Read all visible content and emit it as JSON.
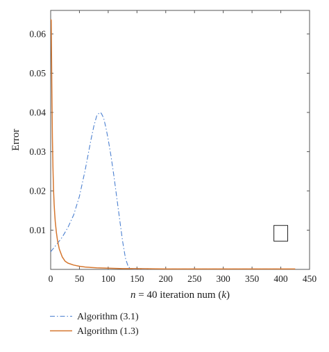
{
  "chart_data": {
    "type": "line",
    "xlabel_parts": [
      "n",
      " = 40 iteration num (",
      "k",
      ")"
    ],
    "ylabel": "Error",
    "xlim": [
      0,
      450
    ],
    "ylim": [
      0,
      0.066
    ],
    "x_ticks": [
      0,
      50,
      100,
      150,
      200,
      250,
      300,
      350,
      400,
      450
    ],
    "x_tick_labels": [
      "0",
      "50",
      "100",
      "150",
      "200",
      "250",
      "300",
      "350",
      "400",
      "450"
    ],
    "y_ticks": [
      0.01,
      0.02,
      0.03,
      0.04,
      0.05,
      0.06
    ],
    "y_tick_labels": [
      "0.01",
      "0.02",
      "0.03",
      "0.04",
      "0.05",
      "0.06"
    ],
    "grid": false,
    "legend_position": "below",
    "series": [
      {
        "name": "Algorithm (3.1)",
        "color": "#4a7fd0",
        "style": "dash-dot",
        "x": [
          0,
          10,
          20,
          30,
          40,
          50,
          60,
          70,
          75,
          80,
          85,
          88,
          92,
          96,
          100,
          105,
          110,
          115,
          120,
          125,
          130,
          135,
          140,
          145,
          150,
          200,
          300,
          400
        ],
        "y": [
          0.0045,
          0.0063,
          0.0082,
          0.0107,
          0.0139,
          0.0186,
          0.0253,
          0.033,
          0.0365,
          0.0391,
          0.04,
          0.0398,
          0.0386,
          0.0361,
          0.0331,
          0.0288,
          0.0237,
          0.0182,
          0.0126,
          0.0072,
          0.0028,
          0.0006,
          0.0002,
          0.0001,
          0.0001,
          0.0001,
          0.0001,
          0.0001
        ]
      },
      {
        "name": "Algorithm (1.3)",
        "color": "#d5762e",
        "style": "solid",
        "x": [
          0,
          1,
          2,
          3,
          4,
          5,
          6,
          7,
          8,
          10,
          12,
          15,
          20,
          25,
          30,
          40,
          50,
          60,
          70,
          80,
          100,
          125,
          150,
          200,
          250,
          300,
          350,
          400,
          425
        ],
        "y": [
          0.0637,
          0.0635,
          0.046,
          0.0335,
          0.0259,
          0.0204,
          0.0166,
          0.0142,
          0.0122,
          0.0093,
          0.0073,
          0.0052,
          0.0032,
          0.0021,
          0.0016,
          0.0011,
          0.0008,
          0.0006,
          0.0005,
          0.0004,
          0.0003,
          0.0002,
          0.0002,
          0.0001,
          0.0001,
          0.0001,
          0.0001,
          0.0001,
          0.0001
        ]
      }
    ],
    "annotations": [
      {
        "type": "rectangle",
        "x_range": [
          388,
          412
        ],
        "y_range": [
          0.0072,
          0.0112
        ]
      }
    ]
  }
}
